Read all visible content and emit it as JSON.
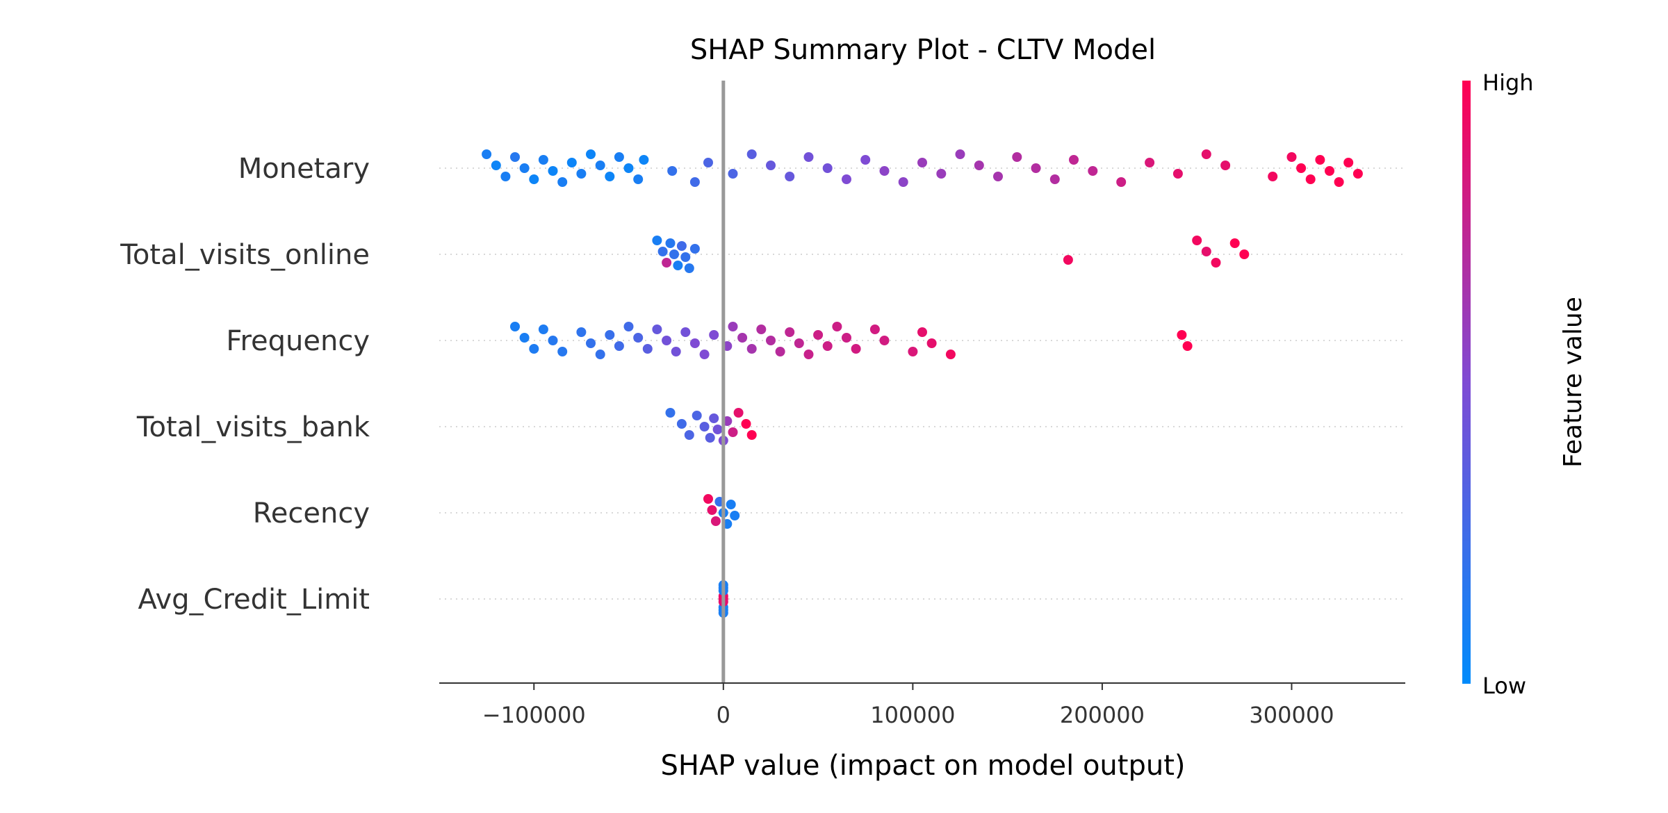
{
  "chart_data": {
    "type": "scatter",
    "title": "SHAP Summary Plot - CLTV Model",
    "xlabel": "SHAP value (impact on model output)",
    "ylabel": "",
    "xlim": [
      -150000,
      360000
    ],
    "xticks": [
      -100000,
      0,
      100000,
      200000,
      300000
    ],
    "xtick_labels": [
      "−100000",
      "0",
      "100000",
      "200000",
      "300000"
    ],
    "grid": false,
    "legend": "none",
    "colorbar": {
      "title": "Feature value",
      "high_label": "High",
      "low_label": "Low",
      "low_color": "#008bfb",
      "high_color": "#ff0052"
    },
    "zero_line_color": "#999999",
    "features": [
      {
        "name": "Monetary",
        "points": [
          [
            -125000,
            0.1
          ],
          [
            -120000,
            0.05
          ],
          [
            -115000,
            0.1
          ],
          [
            -110000,
            0.15
          ],
          [
            -105000,
            0.1
          ],
          [
            -100000,
            0.05
          ],
          [
            -95000,
            0.1
          ],
          [
            -90000,
            0.05
          ],
          [
            -85000,
            0.1
          ],
          [
            -80000,
            0.05
          ],
          [
            -75000,
            0.1
          ],
          [
            -70000,
            0.05
          ],
          [
            -65000,
            0.1
          ],
          [
            -60000,
            0.05
          ],
          [
            -55000,
            0.1
          ],
          [
            -50000,
            0.05
          ],
          [
            -45000,
            0.1
          ],
          [
            -42000,
            0.05
          ],
          [
            -27000,
            0.2
          ],
          [
            -15000,
            0.25
          ],
          [
            -8000,
            0.3
          ],
          [
            5000,
            0.3
          ],
          [
            15000,
            0.35
          ],
          [
            25000,
            0.4
          ],
          [
            35000,
            0.4
          ],
          [
            45000,
            0.45
          ],
          [
            55000,
            0.45
          ],
          [
            65000,
            0.5
          ],
          [
            75000,
            0.5
          ],
          [
            85000,
            0.55
          ],
          [
            95000,
            0.55
          ],
          [
            105000,
            0.6
          ],
          [
            115000,
            0.6
          ],
          [
            125000,
            0.6
          ],
          [
            135000,
            0.65
          ],
          [
            145000,
            0.65
          ],
          [
            155000,
            0.7
          ],
          [
            165000,
            0.7
          ],
          [
            175000,
            0.7
          ],
          [
            185000,
            0.75
          ],
          [
            195000,
            0.75
          ],
          [
            210000,
            0.8
          ],
          [
            225000,
            0.85
          ],
          [
            240000,
            0.9
          ],
          [
            255000,
            0.9
          ],
          [
            265000,
            0.9
          ],
          [
            290000,
            0.95
          ],
          [
            300000,
            0.95
          ],
          [
            305000,
            1.0
          ],
          [
            310000,
            1.0
          ],
          [
            315000,
            1.0
          ],
          [
            320000,
            1.0
          ],
          [
            325000,
            1.0
          ],
          [
            330000,
            1.0
          ],
          [
            335000,
            1.0
          ]
        ]
      },
      {
        "name": "Total_visits_online",
        "points": [
          [
            -35000,
            0.1
          ],
          [
            -32000,
            0.2
          ],
          [
            -30000,
            0.75
          ],
          [
            -28000,
            0.15
          ],
          [
            -26000,
            0.2
          ],
          [
            -24000,
            0.1
          ],
          [
            -22000,
            0.25
          ],
          [
            -20000,
            0.2
          ],
          [
            -18000,
            0.15
          ],
          [
            -15000,
            0.2
          ],
          [
            182000,
            0.95
          ],
          [
            250000,
            0.95
          ],
          [
            255000,
            0.9
          ],
          [
            260000,
            0.95
          ],
          [
            270000,
            1.0
          ],
          [
            275000,
            1.0
          ]
        ]
      },
      {
        "name": "Frequency",
        "points": [
          [
            -110000,
            0.1
          ],
          [
            -105000,
            0.1
          ],
          [
            -100000,
            0.12
          ],
          [
            -95000,
            0.12
          ],
          [
            -90000,
            0.15
          ],
          [
            -85000,
            0.15
          ],
          [
            -75000,
            0.18
          ],
          [
            -70000,
            0.2
          ],
          [
            -65000,
            0.2
          ],
          [
            -60000,
            0.22
          ],
          [
            -55000,
            0.25
          ],
          [
            -50000,
            0.25
          ],
          [
            -45000,
            0.3
          ],
          [
            -40000,
            0.35
          ],
          [
            -35000,
            0.4
          ],
          [
            -30000,
            0.45
          ],
          [
            -25000,
            0.45
          ],
          [
            -20000,
            0.45
          ],
          [
            -15000,
            0.5
          ],
          [
            -10000,
            0.5
          ],
          [
            -5000,
            0.5
          ],
          [
            2000,
            0.55
          ],
          [
            5000,
            0.6
          ],
          [
            10000,
            0.65
          ],
          [
            15000,
            0.65
          ],
          [
            20000,
            0.7
          ],
          [
            25000,
            0.7
          ],
          [
            30000,
            0.72
          ],
          [
            35000,
            0.75
          ],
          [
            40000,
            0.75
          ],
          [
            45000,
            0.78
          ],
          [
            50000,
            0.8
          ],
          [
            55000,
            0.8
          ],
          [
            60000,
            0.8
          ],
          [
            65000,
            0.8
          ],
          [
            70000,
            0.82
          ],
          [
            80000,
            0.82
          ],
          [
            85000,
            0.82
          ],
          [
            100000,
            0.85
          ],
          [
            105000,
            0.9
          ],
          [
            110000,
            0.9
          ],
          [
            120000,
            0.95
          ],
          [
            242000,
            1.0
          ],
          [
            245000,
            1.0
          ]
        ]
      },
      {
        "name": "Total_visits_bank",
        "points": [
          [
            -28000,
            0.2
          ],
          [
            -22000,
            0.25
          ],
          [
            -18000,
            0.3
          ],
          [
            -14000,
            0.3
          ],
          [
            -10000,
            0.35
          ],
          [
            -7000,
            0.35
          ],
          [
            -5000,
            0.4
          ],
          [
            -3000,
            0.45
          ],
          [
            0,
            0.5
          ],
          [
            2000,
            0.6
          ],
          [
            5000,
            0.8
          ],
          [
            8000,
            0.9
          ],
          [
            12000,
            1.0
          ],
          [
            15000,
            1.0
          ]
        ]
      },
      {
        "name": "Recency",
        "points": [
          [
            -8000,
            0.95
          ],
          [
            -6000,
            0.9
          ],
          [
            -4000,
            0.85
          ],
          [
            -2000,
            0.2
          ],
          [
            0,
            0.1
          ],
          [
            2000,
            0.1
          ],
          [
            4000,
            0.1
          ],
          [
            6000,
            0.1
          ]
        ]
      },
      {
        "name": "Avg_Credit_Limit",
        "points": [
          [
            0,
            0.1
          ],
          [
            0,
            0.9
          ],
          [
            0,
            0.1
          ],
          [
            0,
            0.1
          ],
          [
            0,
            0.95
          ],
          [
            0,
            0.1
          ],
          [
            0,
            0.1
          ],
          [
            0,
            0.9
          ],
          [
            0,
            0.1
          ]
        ]
      }
    ]
  }
}
